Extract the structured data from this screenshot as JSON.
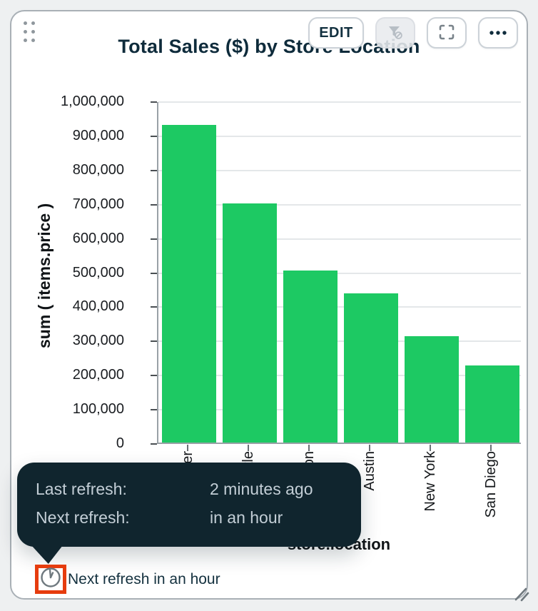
{
  "header": {
    "title": "Total Sales ($) by Store Location"
  },
  "toolbar": {
    "edit_label": "EDIT",
    "filter_button_state": "disabled",
    "icons": [
      "filter-slash-icon",
      "fullscreen-icon",
      "more-options-icon"
    ]
  },
  "chart_data": {
    "type": "bar",
    "title": "Total Sales ($) by Store Location",
    "categories": [
      "Denver",
      "Seattle",
      "Boston",
      "Austin",
      "New York",
      "San Diego"
    ],
    "values": [
      930000,
      700000,
      503000,
      437000,
      312000,
      225000
    ],
    "xlabel": "store.location",
    "ylabel": "sum ( items.price )",
    "ylim": [
      0,
      1000000
    ],
    "ytick_labels": [
      "0",
      "100,000",
      "200,000",
      "300,000",
      "400,000",
      "500,000",
      "600,000",
      "700,000",
      "800,000",
      "900,000",
      "1,000,000"
    ],
    "grid": "horizontal",
    "legend": "none",
    "bar_color": "#1dc963"
  },
  "refresh_tooltip": {
    "rows": [
      {
        "label": "Last refresh:",
        "value": "2 minutes ago"
      },
      {
        "label": "Next refresh:",
        "value": "in an hour"
      }
    ]
  },
  "footer": {
    "refresh_status": "Next refresh in an hour",
    "clock_icon": "clock-icon",
    "highlight_color": "#e63c0e"
  },
  "colors": {
    "bar_green": "#1dc963",
    "navy_text": "#0e2b3b",
    "tooltip_bg": "#10252e",
    "tooltip_text": "#c3ced6",
    "card_border": "#a9b0b6",
    "highlight_red": "#e63c0e"
  }
}
